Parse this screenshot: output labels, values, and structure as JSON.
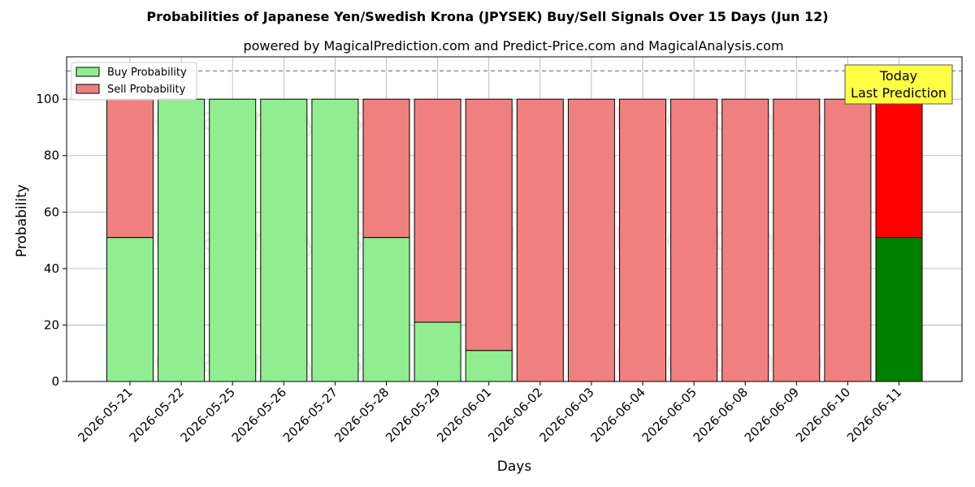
{
  "chart_data": {
    "type": "bar",
    "stacked": true,
    "title": "Probabilities of Japanese Yen/Swedish Krona (JPYSEK) Buy/Sell Signals Over 15 Days (Jun 12)",
    "subtitle": "powered by MagicalPrediction.com and Predict-Price.com and MagicalAnalysis.com",
    "xlabel": "Days",
    "ylabel": "Probability",
    "ylim": [
      0,
      115
    ],
    "yticks": [
      0,
      20,
      40,
      60,
      80,
      100
    ],
    "reference_line": 110,
    "grid": true,
    "legend_position": "top-left",
    "categories": [
      "2026-05-21",
      "2026-05-22",
      "2026-05-25",
      "2026-05-26",
      "2026-05-27",
      "2026-05-28",
      "2026-05-29",
      "2026-06-01",
      "2026-06-02",
      "2026-06-03",
      "2026-06-04",
      "2026-06-05",
      "2026-06-08",
      "2026-06-09",
      "2026-06-10",
      "2026-06-11"
    ],
    "series": [
      {
        "name": "Buy Probability",
        "color": "#90ee90",
        "highlight_color": "#008000",
        "values": [
          51,
          100,
          100,
          100,
          100,
          51,
          21,
          11,
          0,
          0,
          0,
          0,
          0,
          0,
          0,
          51
        ]
      },
      {
        "name": "Sell Probability",
        "color": "#f08080",
        "highlight_color": "#ff0000",
        "values": [
          49,
          0,
          0,
          0,
          0,
          49,
          79,
          89,
          100,
          100,
          100,
          100,
          100,
          100,
          100,
          49
        ]
      }
    ],
    "annotation": {
      "lines": [
        "Today",
        "Last Prediction"
      ],
      "background": "#ffff44",
      "target_category": "2026-06-11"
    },
    "watermarks": [
      "MagicalAnalysis.com",
      "MagicalPrediction.com"
    ]
  }
}
